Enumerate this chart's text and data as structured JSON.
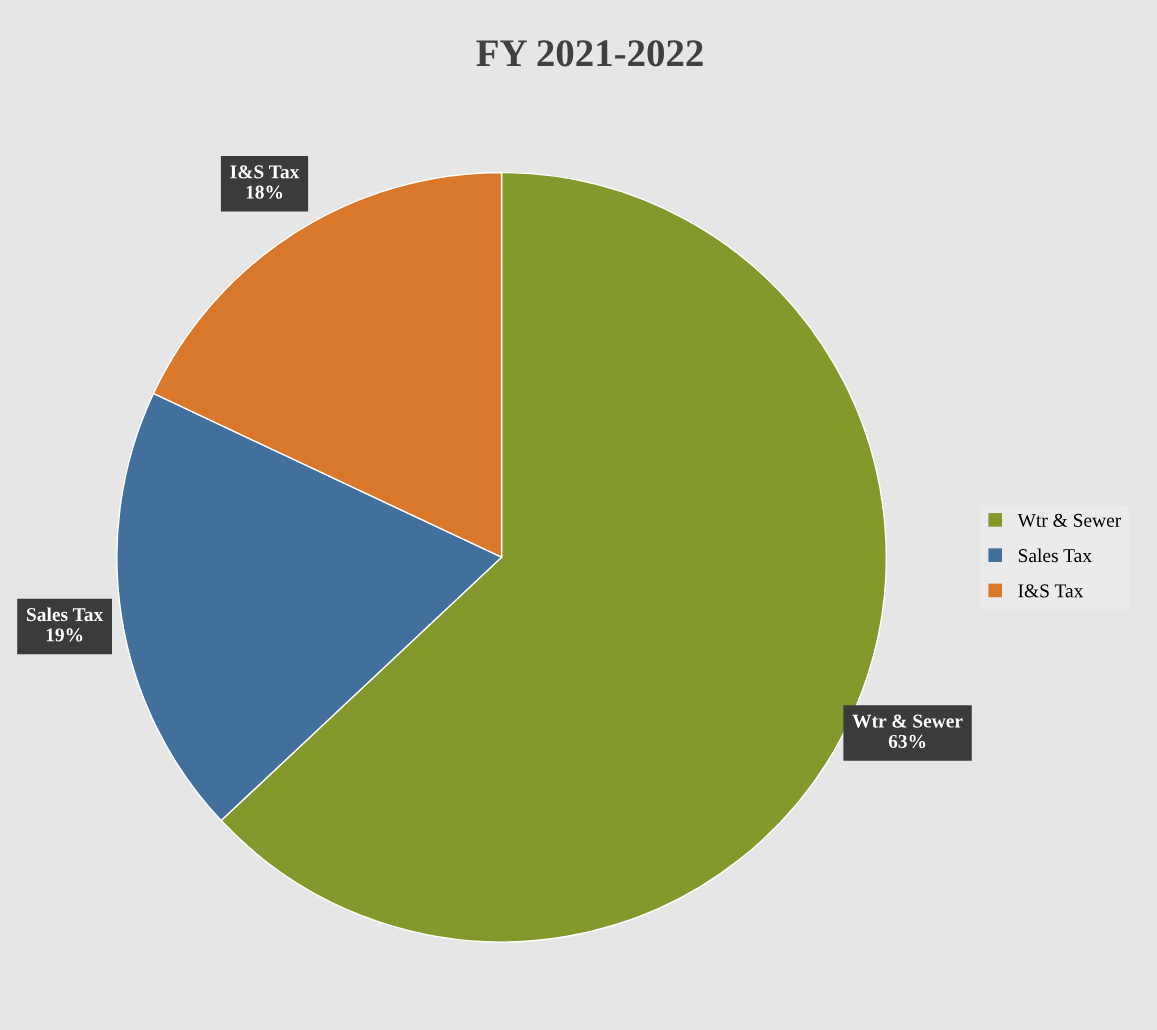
{
  "chart_data": {
    "type": "pie",
    "title": "FY 2021-2022",
    "categories": [
      "Wtr & Sewer",
      "Sales Tax",
      "I&S Tax"
    ],
    "values": [
      63,
      19,
      18
    ],
    "colors": [
      "#84992b",
      "#436f9c",
      "#d9782a"
    ],
    "value_labels": [
      "63%",
      "19%",
      "18%"
    ],
    "legend": "right"
  }
}
